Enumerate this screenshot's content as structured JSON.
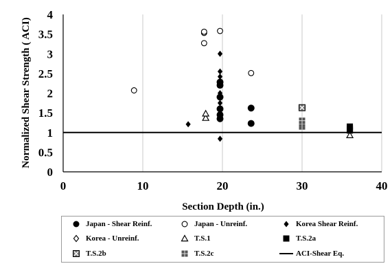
{
  "chart_data": {
    "type": "scatter",
    "xlabel": "Section Depth (in.)",
    "ylabel": "Normalized Shear Strength ( ACI)",
    "xlim": [
      0,
      40
    ],
    "ylim": [
      0,
      4
    ],
    "x_ticks": [
      "0",
      "10",
      "20",
      "30",
      "40"
    ],
    "y_ticks": [
      "0",
      "0.5",
      "1",
      "1.5",
      "2",
      "2.5",
      "3",
      "3.5",
      "4"
    ],
    "grid": "vertical",
    "legend_placement": "bottom",
    "series": [
      {
        "name": "Japan - Shear Reinf.",
        "marker": "filled-circle",
        "points": [
          [
            19.7,
            1.35
          ],
          [
            19.7,
            1.45
          ],
          [
            19.7,
            1.6
          ],
          [
            19.7,
            1.9
          ],
          [
            19.7,
            2.2
          ],
          [
            19.7,
            2.28
          ],
          [
            23.6,
            1.62
          ],
          [
            23.6,
            1.23
          ]
        ]
      },
      {
        "name": "Japan - Unreinf.",
        "marker": "open-circle",
        "points": [
          [
            8.9,
            2.07
          ],
          [
            17.7,
            3.27
          ],
          [
            17.7,
            3.53
          ],
          [
            17.7,
            3.56
          ],
          [
            19.7,
            3.58
          ],
          [
            23.6,
            2.51
          ]
        ]
      },
      {
        "name": "Korea Shear Reinf.",
        "marker": "filled-diamond",
        "points": [
          [
            15.7,
            1.21
          ],
          [
            19.7,
            0.84
          ],
          [
            19.7,
            1.35
          ],
          [
            19.7,
            1.5
          ],
          [
            19.7,
            1.75
          ],
          [
            19.7,
            2.0
          ],
          [
            19.7,
            2.3
          ],
          [
            19.7,
            2.42
          ],
          [
            19.7,
            2.55
          ],
          [
            19.7,
            3.0
          ]
        ]
      },
      {
        "name": "Korea - Unreinf.",
        "marker": "open-diamond",
        "points": []
      },
      {
        "name": "T.S.1",
        "marker": "open-triangle",
        "points": [
          [
            17.9,
            1.37
          ],
          [
            17.9,
            1.48
          ],
          [
            36.0,
            0.93
          ]
        ]
      },
      {
        "name": "T.S.2a",
        "marker": "filled-square",
        "points": [
          [
            36.0,
            1.05
          ],
          [
            36.0,
            1.1
          ],
          [
            36.0,
            1.15
          ]
        ]
      },
      {
        "name": "T.S.2b",
        "marker": "crossed-square",
        "points": [
          [
            30.0,
            1.63
          ]
        ]
      },
      {
        "name": "T.S.2c",
        "marker": "grid-square",
        "points": [
          [
            30.0,
            1.15
          ],
          [
            30.0,
            1.22
          ],
          [
            30.0,
            1.3
          ]
        ]
      }
    ],
    "reference_lines": [
      {
        "name": "ACI-Shear Eq.",
        "y": 1.0
      }
    ]
  }
}
